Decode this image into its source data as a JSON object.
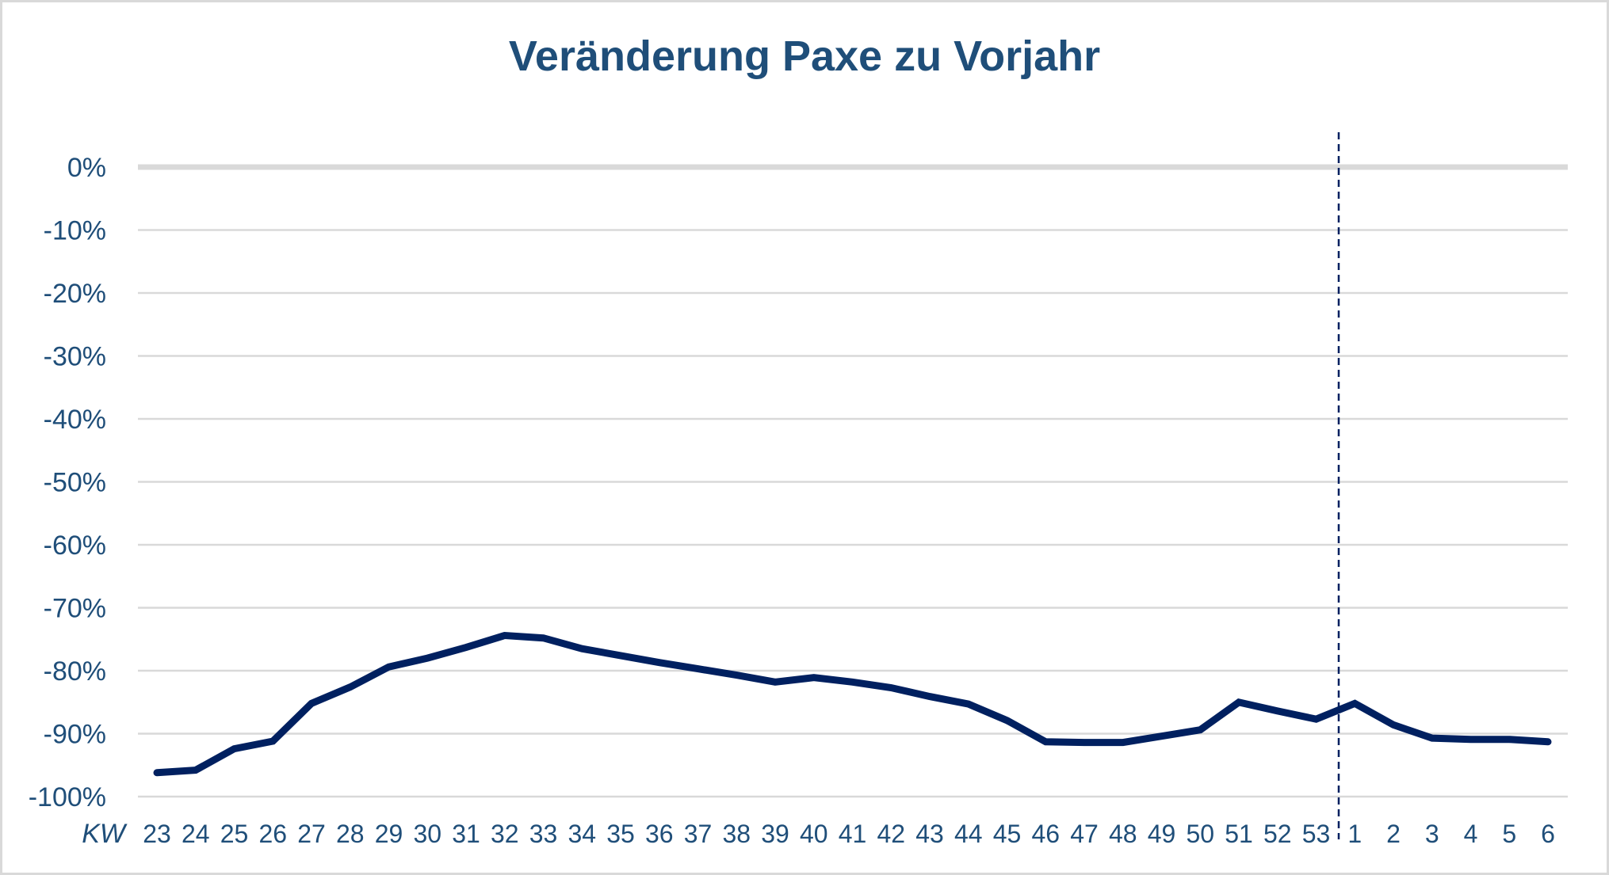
{
  "chart_data": {
    "type": "line",
    "title": "Veränderung Paxe zu Vorjahr",
    "xlabel": "KW",
    "ylabel": "",
    "ylim": [
      -100,
      0
    ],
    "y_ticks": [
      "0%",
      "-10%",
      "-20%",
      "-30%",
      "-40%",
      "-50%",
      "-60%",
      "-70%",
      "-80%",
      "-90%",
      "-100%"
    ],
    "grid": true,
    "legend": "none",
    "categories": [
      "23",
      "24",
      "25",
      "26",
      "27",
      "28",
      "29",
      "30",
      "31",
      "32",
      "33",
      "34",
      "35",
      "36",
      "37",
      "38",
      "39",
      "40",
      "41",
      "42",
      "43",
      "44",
      "45",
      "46",
      "47",
      "48",
      "49",
      "50",
      "51",
      "52",
      "53",
      "1",
      "2",
      "3",
      "4",
      "5",
      "6"
    ],
    "series": [
      {
        "name": "Veränderung Paxe zu Vorjahr",
        "color": "#002060",
        "values": [
          -96.2,
          -95.8,
          -92.4,
          -91.2,
          -85.2,
          -82.6,
          -79.4,
          -78.0,
          -76.3,
          -74.4,
          -74.8,
          -76.5,
          -77.6,
          -78.7,
          -79.7,
          -80.7,
          -81.8,
          -81.1,
          -81.8,
          -82.7,
          -84.1,
          -85.3,
          -87.9,
          -91.3,
          -91.4,
          -91.4,
          -90.4,
          -89.4,
          -85.0,
          -86.4,
          -87.7,
          -85.2,
          -88.6,
          -90.7,
          -90.9,
          -90.9,
          -91.3
        ]
      }
    ],
    "annotations": [
      {
        "type": "vertical-dashed-line",
        "between": [
          "53",
          "1"
        ],
        "meaning": "year boundary"
      }
    ]
  },
  "colors": {
    "title": "#1F4E79",
    "labels": "#1F4E79",
    "line": "#002060",
    "grid": "#D9D9D9",
    "border": "#D9D9D9"
  }
}
